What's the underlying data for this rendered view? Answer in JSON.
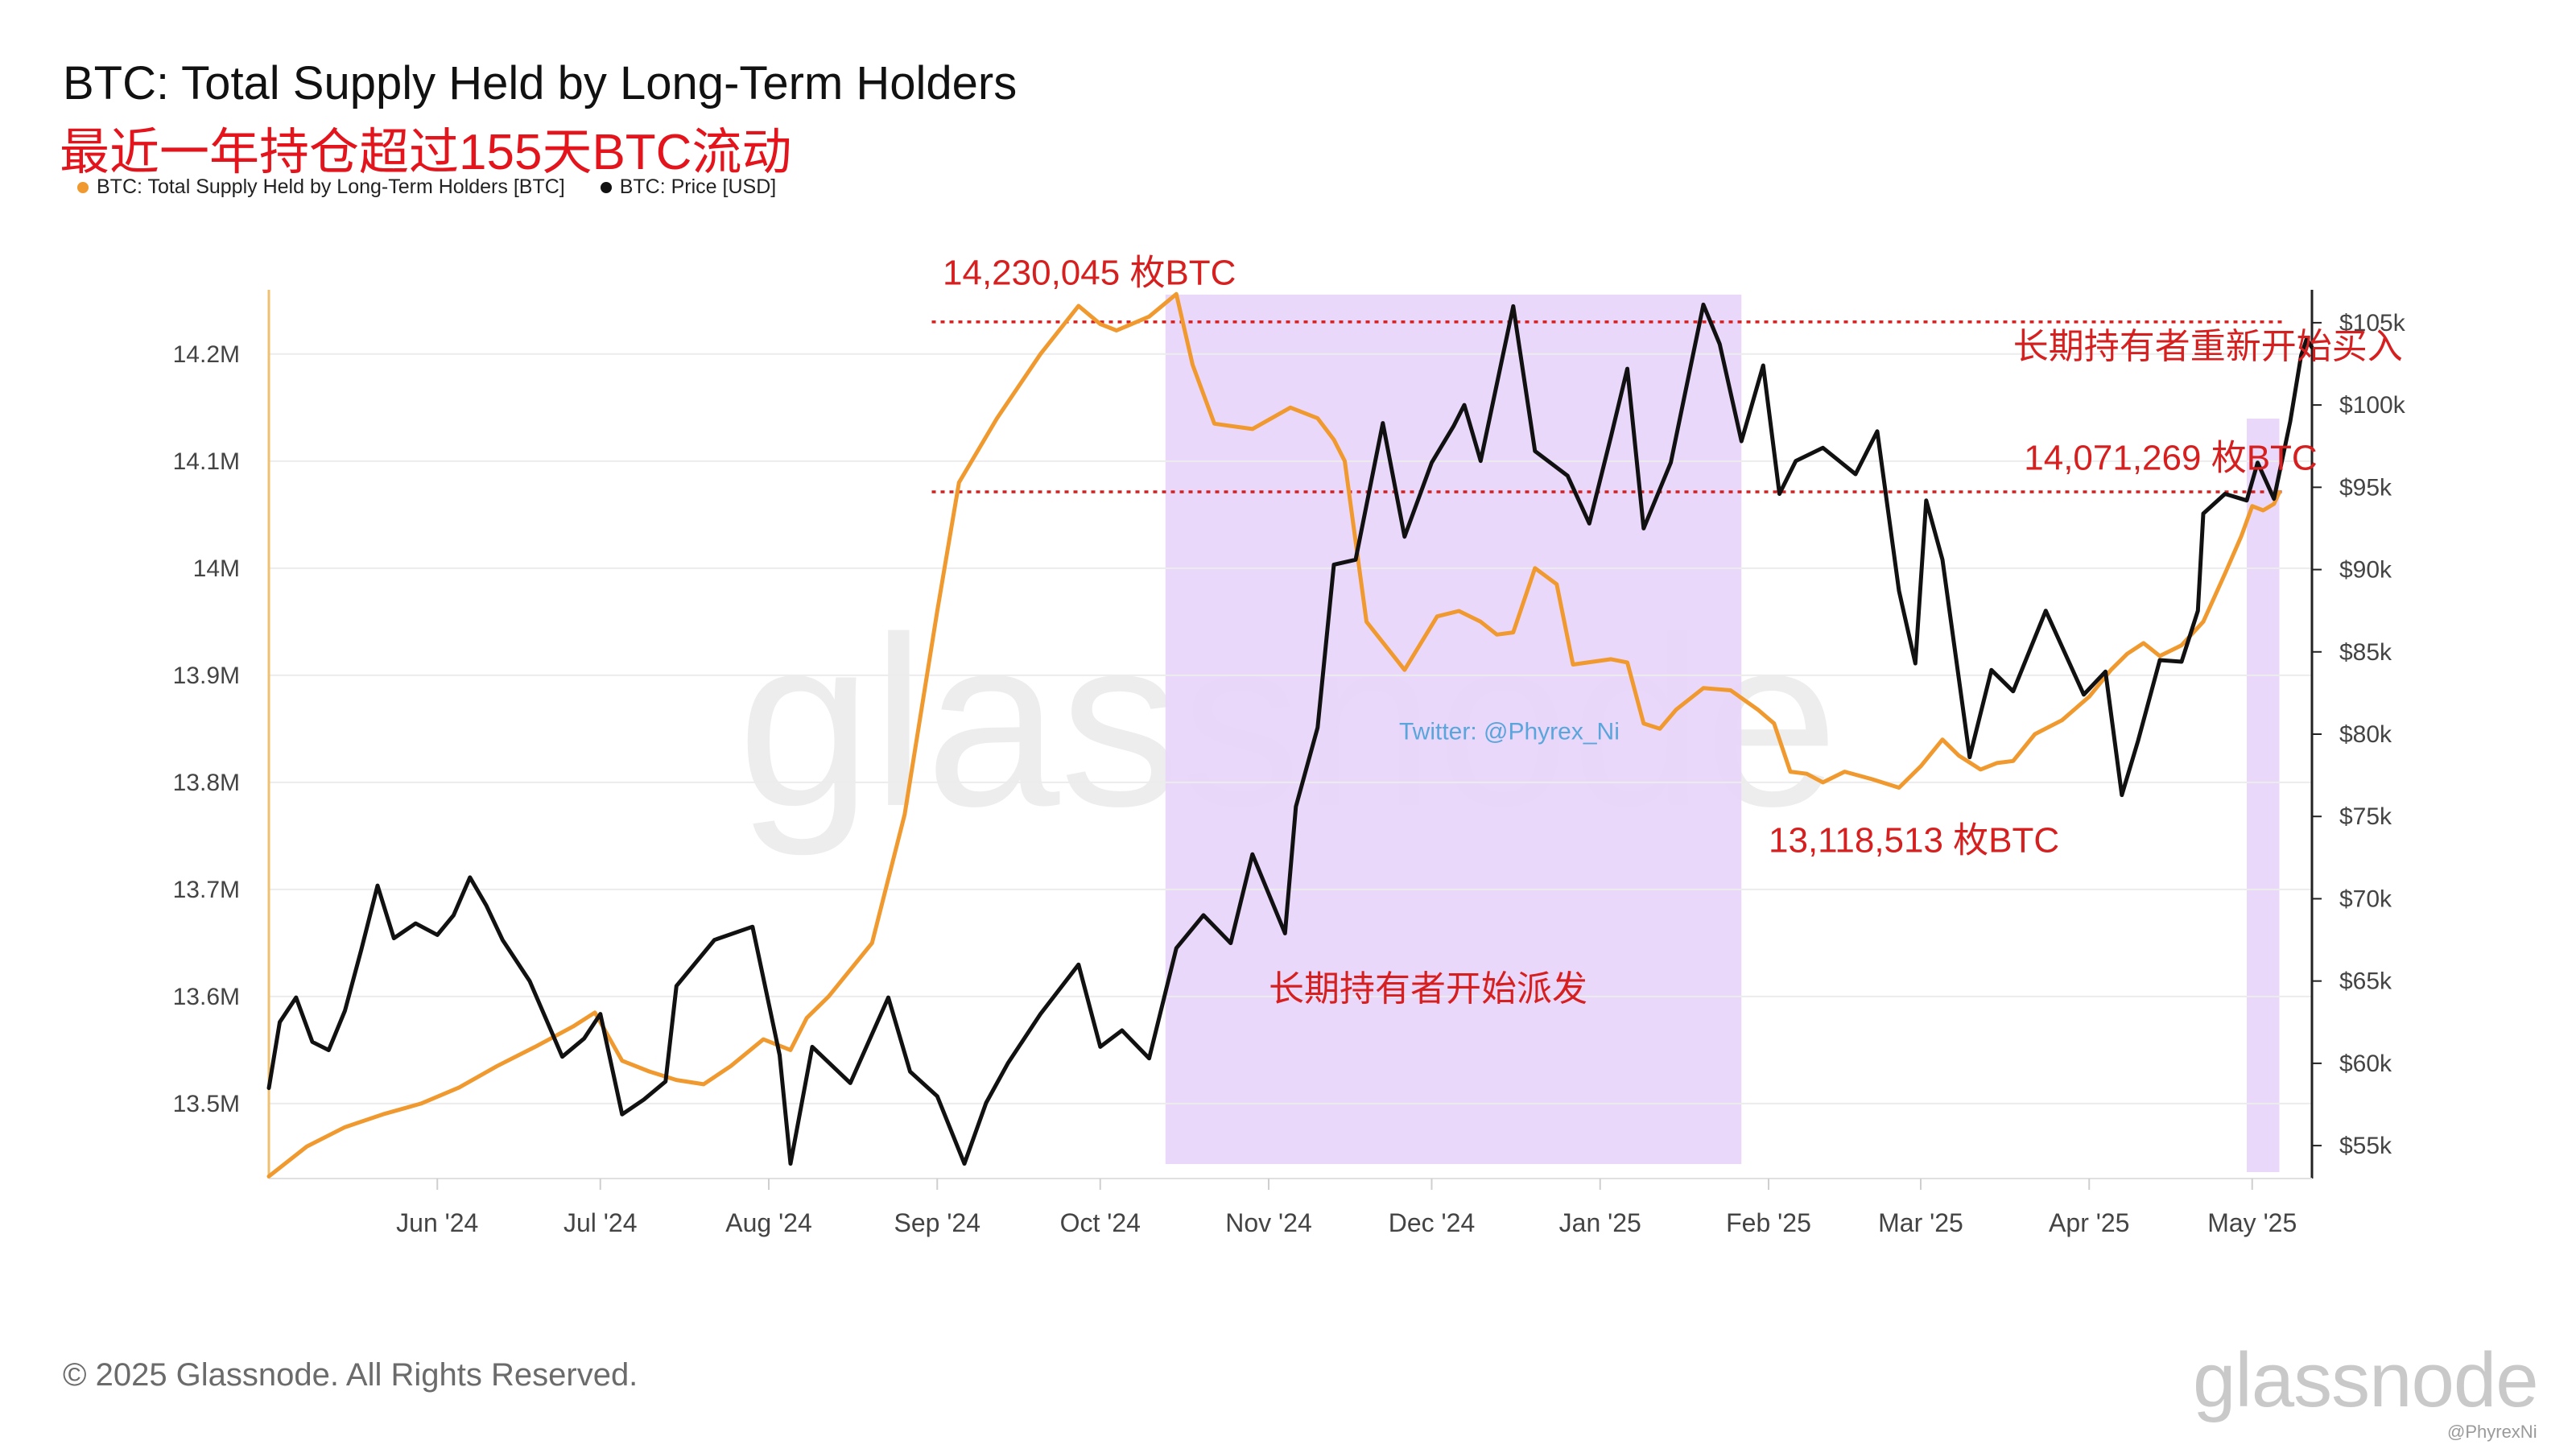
{
  "title": "BTC: Total Supply Held by Long-Term Holders",
  "subtitle": "最近一年持仓超过155天BTC流动",
  "legend": [
    {
      "label": "BTC: Total Supply Held by Long-Term Holders [BTC]",
      "color": "#f0992e"
    },
    {
      "label": "BTC: Price [USD]",
      "color": "#111111"
    }
  ],
  "copyright": "© 2025 Glassnode. All Rights Reserved.",
  "logo_text": "glassnode",
  "watermark_text": "glassnode",
  "credit": "@PhyrexNi",
  "chart_data": {
    "type": "line",
    "x_type": "date",
    "xlim": [
      "2024-05-01",
      "2025-05-12"
    ],
    "x_ticks": [
      {
        "date": "2024-06-01",
        "label": "Jun '24"
      },
      {
        "date": "2024-07-01",
        "label": "Jul '24"
      },
      {
        "date": "2024-08-01",
        "label": "Aug '24"
      },
      {
        "date": "2024-09-01",
        "label": "Sep '24"
      },
      {
        "date": "2024-10-01",
        "label": "Oct '24"
      },
      {
        "date": "2024-11-01",
        "label": "Nov '24"
      },
      {
        "date": "2024-12-01",
        "label": "Dec '24"
      },
      {
        "date": "2025-01-01",
        "label": "Jan '25"
      },
      {
        "date": "2025-02-01",
        "label": "Feb '25"
      },
      {
        "date": "2025-03-01",
        "label": "Mar '25"
      },
      {
        "date": "2025-04-01",
        "label": "Apr '25"
      },
      {
        "date": "2025-05-01",
        "label": "May '25"
      }
    ],
    "y_left": {
      "lim": [
        13430000,
        14260000
      ],
      "ticks": [
        {
          "value": 13500000,
          "label": "13.5M"
        },
        {
          "value": 13600000,
          "label": "13.6M"
        },
        {
          "value": 13700000,
          "label": "13.7M"
        },
        {
          "value": 13800000,
          "label": "13.8M"
        },
        {
          "value": 13900000,
          "label": "13.9M"
        },
        {
          "value": 14000000,
          "label": "14M"
        },
        {
          "value": 14100000,
          "label": "14.1M"
        },
        {
          "value": 14200000,
          "label": "14.2M"
        }
      ]
    },
    "y_right": {
      "lim": [
        53000,
        107000
      ],
      "ticks": [
        {
          "value": 55000,
          "label": "$55k"
        },
        {
          "value": 60000,
          "label": "$60k"
        },
        {
          "value": 65000,
          "label": "$65k"
        },
        {
          "value": 70000,
          "label": "$70k"
        },
        {
          "value": 75000,
          "label": "$75k"
        },
        {
          "value": 80000,
          "label": "$80k"
        },
        {
          "value": 85000,
          "label": "$85k"
        },
        {
          "value": 90000,
          "label": "$90k"
        },
        {
          "value": 95000,
          "label": "$95k"
        },
        {
          "value": 100000,
          "label": "$100k"
        },
        {
          "value": 105000,
          "label": "$105k"
        }
      ]
    },
    "grid": true,
    "series": [
      {
        "name": "BTC: Total Supply Held by Long-Term Holders [BTC]",
        "axis": "left",
        "color": "#f0992e",
        "points": [
          [
            "2024-05-01",
            13432000
          ],
          [
            "2024-05-08",
            13460000
          ],
          [
            "2024-05-15",
            13478000
          ],
          [
            "2024-05-22",
            13490000
          ],
          [
            "2024-05-29",
            13500000
          ],
          [
            "2024-06-05",
            13515000
          ],
          [
            "2024-06-12",
            13535000
          ],
          [
            "2024-06-19",
            13553000
          ],
          [
            "2024-06-26",
            13572000
          ],
          [
            "2024-06-30",
            13585000
          ],
          [
            "2024-07-05",
            13540000
          ],
          [
            "2024-07-10",
            13530000
          ],
          [
            "2024-07-15",
            13522000
          ],
          [
            "2024-07-20",
            13518000
          ],
          [
            "2024-07-25",
            13535000
          ],
          [
            "2024-07-31",
            13560000
          ],
          [
            "2024-08-05",
            13550000
          ],
          [
            "2024-08-08",
            13580000
          ],
          [
            "2024-08-12",
            13600000
          ],
          [
            "2024-08-20",
            13650000
          ],
          [
            "2024-08-26",
            13770000
          ],
          [
            "2024-09-01",
            13960000
          ],
          [
            "2024-09-05",
            14080000
          ],
          [
            "2024-09-12",
            14140000
          ],
          [
            "2024-09-20",
            14200000
          ],
          [
            "2024-09-27",
            14245000
          ],
          [
            "2024-10-01",
            14228000
          ],
          [
            "2024-10-04",
            14222000
          ],
          [
            "2024-10-10",
            14235000
          ],
          [
            "2024-10-15",
            14256000
          ],
          [
            "2024-10-18",
            14190000
          ],
          [
            "2024-10-22",
            14135000
          ],
          [
            "2024-10-29",
            14130000
          ],
          [
            "2024-11-05",
            14150000
          ],
          [
            "2024-11-10",
            14140000
          ],
          [
            "2024-11-13",
            14120000
          ],
          [
            "2024-11-15",
            14100000
          ],
          [
            "2024-11-19",
            13950000
          ],
          [
            "2024-11-26",
            13905000
          ],
          [
            "2024-12-02",
            13955000
          ],
          [
            "2024-12-06",
            13960000
          ],
          [
            "2024-12-10",
            13950000
          ],
          [
            "2024-12-13",
            13938000
          ],
          [
            "2024-12-16",
            13940000
          ],
          [
            "2024-12-20",
            14000000
          ],
          [
            "2024-12-24",
            13985000
          ],
          [
            "2024-12-27",
            13910000
          ],
          [
            "2025-01-03",
            13915000
          ],
          [
            "2025-01-06",
            13912000
          ],
          [
            "2025-01-09",
            13855000
          ],
          [
            "2025-01-12",
            13850000
          ],
          [
            "2025-01-15",
            13868000
          ],
          [
            "2025-01-20",
            13888000
          ],
          [
            "2025-01-25",
            13886000
          ],
          [
            "2025-01-30",
            13868000
          ],
          [
            "2025-02-02",
            13855000
          ],
          [
            "2025-02-05",
            13810000
          ],
          [
            "2025-02-08",
            13808000
          ],
          [
            "2025-02-11",
            13800000
          ],
          [
            "2025-02-15",
            13810000
          ],
          [
            "2025-02-20",
            13803000
          ],
          [
            "2025-02-25",
            13795000
          ],
          [
            "2025-03-01",
            13815000
          ],
          [
            "2025-03-05",
            13840000
          ],
          [
            "2025-03-08",
            13825000
          ],
          [
            "2025-03-12",
            13812000
          ],
          [
            "2025-03-15",
            13818000
          ],
          [
            "2025-03-18",
            13820000
          ],
          [
            "2025-03-22",
            13845000
          ],
          [
            "2025-03-27",
            13858000
          ],
          [
            "2025-04-01",
            13880000
          ],
          [
            "2025-04-05",
            13905000
          ],
          [
            "2025-04-08",
            13920000
          ],
          [
            "2025-04-11",
            13930000
          ],
          [
            "2025-04-14",
            13918000
          ],
          [
            "2025-04-18",
            13928000
          ],
          [
            "2025-04-22",
            13950000
          ],
          [
            "2025-04-26",
            13995000
          ],
          [
            "2025-04-29",
            14030000
          ],
          [
            "2025-05-01",
            14058000
          ],
          [
            "2025-05-03",
            14054000
          ],
          [
            "2025-05-05",
            14060000
          ],
          [
            "2025-05-06",
            14071000
          ]
        ]
      },
      {
        "name": "BTC: Price [USD]",
        "axis": "right",
        "color": "#111111",
        "points": [
          [
            "2024-05-01",
            58500
          ],
          [
            "2024-05-03",
            62500
          ],
          [
            "2024-05-06",
            64000
          ],
          [
            "2024-05-09",
            61300
          ],
          [
            "2024-05-12",
            60800
          ],
          [
            "2024-05-15",
            63200
          ],
          [
            "2024-05-18",
            66900
          ],
          [
            "2024-05-21",
            70800
          ],
          [
            "2024-05-24",
            67600
          ],
          [
            "2024-05-28",
            68500
          ],
          [
            "2024-06-01",
            67800
          ],
          [
            "2024-06-04",
            69000
          ],
          [
            "2024-06-07",
            71300
          ],
          [
            "2024-06-10",
            69600
          ],
          [
            "2024-06-13",
            67500
          ],
          [
            "2024-06-18",
            65000
          ],
          [
            "2024-06-24",
            60400
          ],
          [
            "2024-06-28",
            61500
          ],
          [
            "2024-07-01",
            63000
          ],
          [
            "2024-07-05",
            56900
          ],
          [
            "2024-07-09",
            57800
          ],
          [
            "2024-07-13",
            58900
          ],
          [
            "2024-07-15",
            64700
          ],
          [
            "2024-07-22",
            67500
          ],
          [
            "2024-07-29",
            68300
          ],
          [
            "2024-08-03",
            60500
          ],
          [
            "2024-08-05",
            53900
          ],
          [
            "2024-08-09",
            61000
          ],
          [
            "2024-08-16",
            58800
          ],
          [
            "2024-08-23",
            64000
          ],
          [
            "2024-08-27",
            59500
          ],
          [
            "2024-09-01",
            58000
          ],
          [
            "2024-09-06",
            53900
          ],
          [
            "2024-09-10",
            57600
          ],
          [
            "2024-09-14",
            60000
          ],
          [
            "2024-09-20",
            63000
          ],
          [
            "2024-09-27",
            66000
          ],
          [
            "2024-10-01",
            61000
          ],
          [
            "2024-10-05",
            62000
          ],
          [
            "2024-10-10",
            60300
          ],
          [
            "2024-10-15",
            67000
          ],
          [
            "2024-10-20",
            69000
          ],
          [
            "2024-10-25",
            67300
          ],
          [
            "2024-10-29",
            72700
          ],
          [
            "2024-11-04",
            67900
          ],
          [
            "2024-11-06",
            75600
          ],
          [
            "2024-11-10",
            80400
          ],
          [
            "2024-11-13",
            90300
          ],
          [
            "2024-11-17",
            90600
          ],
          [
            "2024-11-22",
            98900
          ],
          [
            "2024-11-26",
            92000
          ],
          [
            "2024-12-01",
            96500
          ],
          [
            "2024-12-05",
            98700
          ],
          [
            "2024-12-07",
            100000
          ],
          [
            "2024-12-10",
            96600
          ],
          [
            "2024-12-16",
            106000
          ],
          [
            "2024-12-20",
            97200
          ],
          [
            "2024-12-26",
            95700
          ],
          [
            "2024-12-30",
            92800
          ],
          [
            "2025-01-03",
            98100
          ],
          [
            "2025-01-06",
            102200
          ],
          [
            "2025-01-09",
            92500
          ],
          [
            "2025-01-14",
            96500
          ],
          [
            "2025-01-20",
            106100
          ],
          [
            "2025-01-23",
            103700
          ],
          [
            "2025-01-27",
            97800
          ],
          [
            "2025-01-31",
            102400
          ],
          [
            "2025-02-03",
            94600
          ],
          [
            "2025-02-06",
            96600
          ],
          [
            "2025-02-11",
            97400
          ],
          [
            "2025-02-17",
            95800
          ],
          [
            "2025-02-21",
            98400
          ],
          [
            "2025-02-25",
            88700
          ],
          [
            "2025-02-28",
            84300
          ],
          [
            "2025-03-02",
            94200
          ],
          [
            "2025-03-05",
            90600
          ],
          [
            "2025-03-10",
            78600
          ],
          [
            "2025-03-14",
            83900
          ],
          [
            "2025-03-18",
            82600
          ],
          [
            "2025-03-24",
            87500
          ],
          [
            "2025-03-31",
            82400
          ],
          [
            "2025-04-04",
            83800
          ],
          [
            "2025-04-07",
            76300
          ],
          [
            "2025-04-10",
            79600
          ],
          [
            "2025-04-14",
            84500
          ],
          [
            "2025-04-18",
            84400
          ],
          [
            "2025-04-21",
            87500
          ],
          [
            "2025-04-22",
            93400
          ],
          [
            "2025-04-26",
            94600
          ],
          [
            "2025-04-30",
            94200
          ],
          [
            "2025-05-02",
            96500
          ],
          [
            "2025-05-05",
            94300
          ],
          [
            "2025-05-08",
            99000
          ],
          [
            "2025-05-10",
            103000
          ],
          [
            "2025-05-11",
            104000
          ],
          [
            "2025-05-12",
            103500
          ]
        ]
      }
    ],
    "shaded_regions": [
      {
        "start": "2024-10-13",
        "end": "2025-01-27",
        "color": "#e9d6fb"
      },
      {
        "start": "2025-04-30",
        "end": "2025-05-06",
        "color": "#e9d6fb"
      }
    ],
    "reference_lines": [
      {
        "axis": "left",
        "value": 14230045,
        "start": "2024-08-31",
        "end": "2025-05-07",
        "color": "#d62020"
      },
      {
        "axis": "left",
        "value": 14071269,
        "start": "2024-08-31",
        "end": "2025-05-07",
        "color": "#d62020"
      }
    ],
    "annotations": [
      {
        "text": "14,230,045 枚BTC",
        "date": "2024-09-02",
        "value": 14265000,
        "color": "#d62020"
      },
      {
        "text": "长期持有者重新开始买入",
        "date": "2025-03-18",
        "value": 14196000,
        "color": "#d62020"
      },
      {
        "text": "14,071,269 枚BTC",
        "date": "2025-03-20",
        "value": 14092000,
        "color": "#d62020"
      },
      {
        "text": "13,118,513 枚BTC",
        "date": "2025-02-01",
        "value": 13735000,
        "color": "#d62020"
      },
      {
        "text": "长期持有者开始派发",
        "date": "2024-11-01",
        "value": 13596000,
        "color": "#d62020"
      },
      {
        "text": "Twitter: @Phyrex_Ni",
        "date": "2024-11-25",
        "value": 13840000,
        "color": "#4aa0d8"
      }
    ]
  }
}
